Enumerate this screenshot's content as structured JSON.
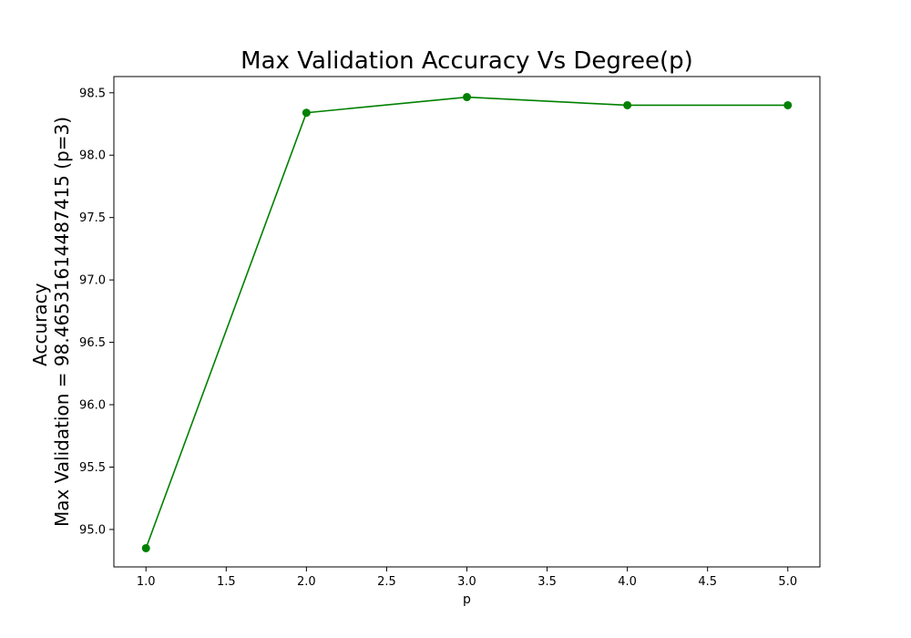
{
  "chart_data": {
    "type": "line",
    "title": "Max Validation Accuracy Vs Degree(p)",
    "xlabel": "p",
    "ylabel_lines": [
      "Accuracy",
      "Max Validation = 98.46531614487415 (p=3)"
    ],
    "xlim": [
      0.8,
      5.2
    ],
    "ylim": [
      94.7,
      98.63
    ],
    "xticks": [
      1.0,
      1.5,
      2.0,
      2.5,
      3.0,
      3.5,
      4.0,
      4.5,
      5.0
    ],
    "xtick_labels": [
      "1.0",
      "1.5",
      "2.0",
      "2.5",
      "3.0",
      "3.5",
      "4.0",
      "4.5",
      "5.0"
    ],
    "yticks": [
      95.0,
      95.5,
      96.0,
      96.5,
      97.0,
      97.5,
      98.0,
      98.5
    ],
    "ytick_labels": [
      "95.0",
      "95.5",
      "96.0",
      "96.5",
      "97.0",
      "97.5",
      "98.0",
      "98.5"
    ],
    "grid": false,
    "series": [
      {
        "color": "#008000",
        "marker": "circle",
        "x": [
          1,
          2,
          3,
          4,
          5
        ],
        "y": [
          94.85,
          98.34,
          98.4653,
          98.4,
          98.4
        ]
      }
    ]
  }
}
